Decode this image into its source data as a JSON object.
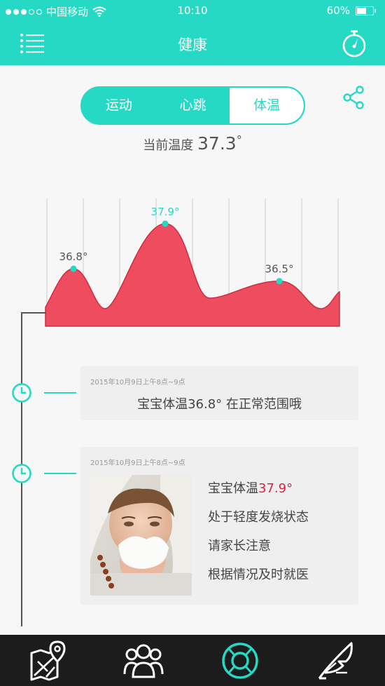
{
  "status": {
    "carrier": "中国移动",
    "time": "10:10",
    "battery": "60%",
    "battery_level": 0.6
  },
  "header": {
    "title": "健康"
  },
  "segments": [
    {
      "label": "运动",
      "active": false
    },
    {
      "label": "心跳",
      "active": false
    },
    {
      "label": "体温",
      "active": true
    }
  ],
  "current": {
    "label": "当前温度",
    "value": "37.3",
    "unit": "°"
  },
  "chart_data": {
    "type": "area",
    "points": [
      {
        "label": "36.8°",
        "value": 36.8
      },
      {
        "label": "37.9°",
        "value": 37.9
      },
      {
        "label": "36.5°",
        "value": 36.5
      }
    ]
  },
  "colors": {
    "accent": "#25d9c5",
    "area": "#ee4d5f",
    "alert": "#d9243c"
  },
  "cards": [
    {
      "date": "2015年10月9日上午8点~9点",
      "message": "宝宝体温36.8°  在正常范围哦"
    },
    {
      "date": "2015年10月9日上午8点~9点",
      "temp_prefix": "宝宝体温",
      "temp_value": "37.9°",
      "line2": "处于轻度发烧状态",
      "line3": "请家长注意",
      "line4": "根据情况及时就医"
    }
  ],
  "tabs": [
    {
      "icon": "map-icon"
    },
    {
      "icon": "family-icon"
    },
    {
      "icon": "lifebuoy-icon",
      "active": true
    },
    {
      "icon": "feather-icon"
    }
  ]
}
